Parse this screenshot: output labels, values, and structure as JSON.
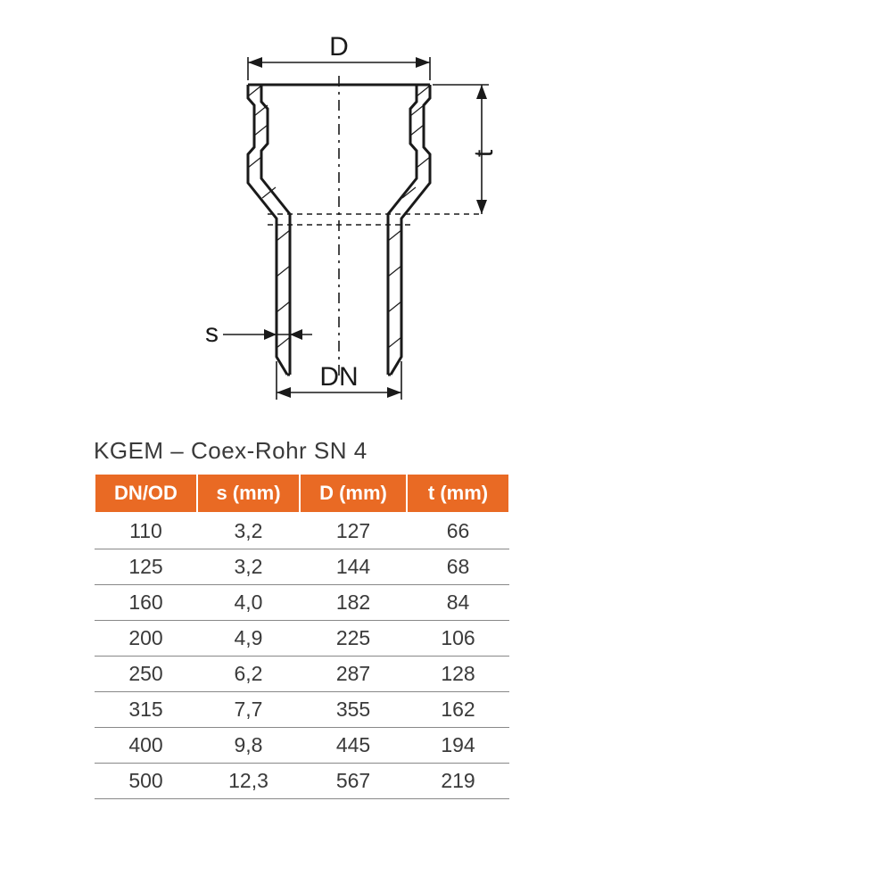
{
  "diagram": {
    "labels": {
      "D": "D",
      "t": "t",
      "s": "s",
      "DN": "DN"
    },
    "stroke_color": "#1a1a1a",
    "stroke_width_main": 3,
    "stroke_width_dim": 1.6,
    "text_color": "#1a1a1a",
    "label_fontsize": 30,
    "centerline_dash": "12 6 3 6",
    "extline_dash": "6 5"
  },
  "table": {
    "title": "KGEM – Coex-Rohr SN 4",
    "header_bg": "#e96a24",
    "header_fg": "#ffffff",
    "row_border": "#888888",
    "cell_fg": "#3a3a3a",
    "title_fontsize": 26,
    "header_fontsize": 22,
    "cell_fontsize": 23,
    "columns": [
      "DN/OD",
      "s (mm)",
      "D (mm)",
      "t (mm)"
    ],
    "rows": [
      [
        "110",
        "3,2",
        "127",
        "66"
      ],
      [
        "125",
        "3,2",
        "144",
        "68"
      ],
      [
        "160",
        "4,0",
        "182",
        "84"
      ],
      [
        "200",
        "4,9",
        "225",
        "106"
      ],
      [
        "250",
        "6,2",
        "287",
        "128"
      ],
      [
        "315",
        "7,7",
        "355",
        "162"
      ],
      [
        "400",
        "9,8",
        "445",
        "194"
      ],
      [
        "500",
        "12,3",
        "567",
        "219"
      ]
    ]
  }
}
